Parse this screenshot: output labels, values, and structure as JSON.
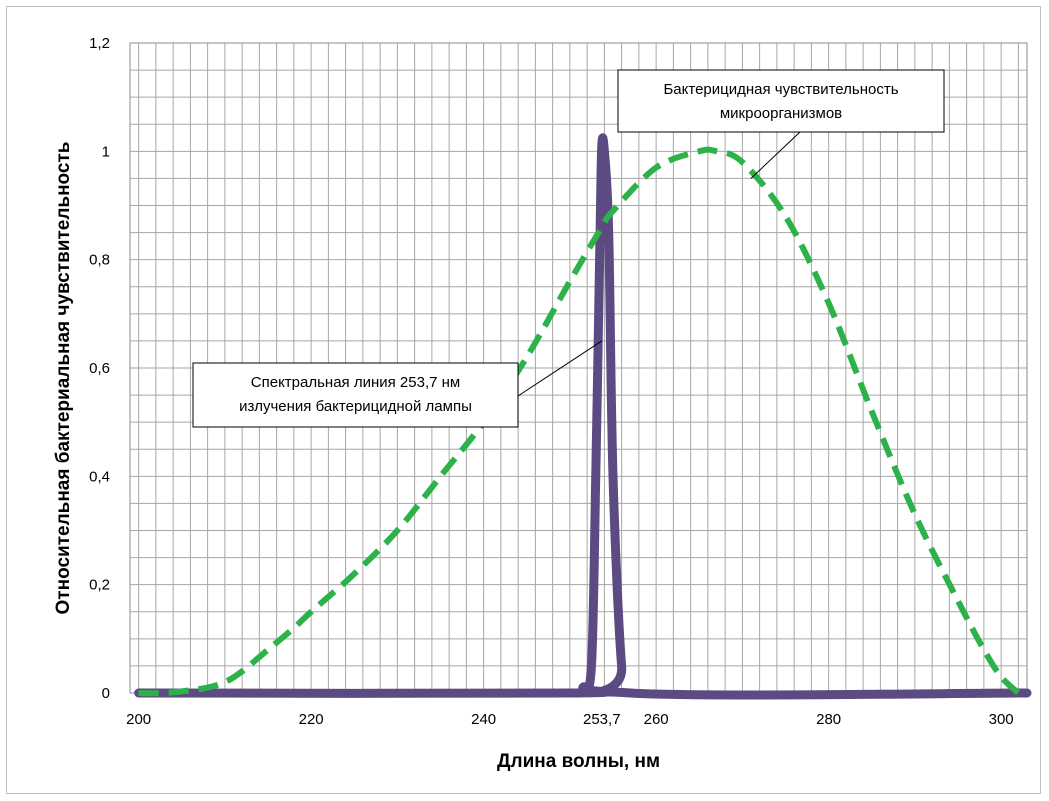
{
  "chart_data": {
    "type": "line",
    "title": "",
    "xlabel": "Длина волны, нм",
    "ylabel": "Относительная бактериальная чувствительность",
    "xlim": [
      199,
      303
    ],
    "ylim": [
      0,
      1.2
    ],
    "grid": true,
    "x_ticks": [
      {
        "value": 200,
        "label": "200"
      },
      {
        "value": 220,
        "label": "220"
      },
      {
        "value": 240,
        "label": "240"
      },
      {
        "value": 253.7,
        "label": "253,7"
      },
      {
        "value": 260,
        "label": "260"
      },
      {
        "value": 280,
        "label": "280"
      },
      {
        "value": 300,
        "label": "300"
      }
    ],
    "y_ticks": [
      {
        "value": 0,
        "label": "0"
      },
      {
        "value": 0.2,
        "label": "0,2"
      },
      {
        "value": 0.4,
        "label": "0,4"
      },
      {
        "value": 0.6,
        "label": "0,6"
      },
      {
        "value": 0.8,
        "label": "0,8"
      },
      {
        "value": 1,
        "label": "1"
      },
      {
        "value": 1.2,
        "label": "1,2"
      }
    ],
    "series": [
      {
        "color": "#2db24a",
        "style": "dashed",
        "x": [
          200,
          203,
          206,
          208,
          210,
          212,
          215,
          218,
          220,
          225,
          230,
          235,
          240,
          245,
          250,
          253.7,
          255,
          260,
          265,
          267,
          270,
          275,
          280,
          285,
          290,
          295,
          298,
          300,
          302
        ],
        "y": [
          0,
          0,
          0.005,
          0.01,
          0.02,
          0.04,
          0.08,
          0.12,
          0.15,
          0.22,
          0.3,
          0.4,
          0.5,
          0.62,
          0.76,
          0.86,
          0.89,
          0.97,
          1.0,
          1.0,
          0.98,
          0.88,
          0.72,
          0.52,
          0.33,
          0.17,
          0.08,
          0.03,
          0
        ]
      },
      {
        "color": "#5c4a82",
        "style": "solid",
        "x": [
          200,
          250,
          251.5,
          252.5,
          253,
          253.5,
          253.7,
          254,
          254.5,
          255,
          256,
          257,
          303
        ],
        "y": [
          0,
          0,
          0.01,
          0.05,
          0.4,
          0.85,
          1.01,
          1.0,
          0.85,
          0.4,
          0.05,
          0,
          0
        ]
      }
    ],
    "annotations": [
      {
        "text": [
          "Бактерицидная чувствительность",
          "микроорганизмов"
        ],
        "target_x": 271,
        "target_y": 0.95
      },
      {
        "text": [
          "Спектральная линия 253,7 нм",
          "излучения бактерицидной лампы"
        ],
        "target_x": 253.7,
        "target_y": 0.65
      }
    ]
  }
}
